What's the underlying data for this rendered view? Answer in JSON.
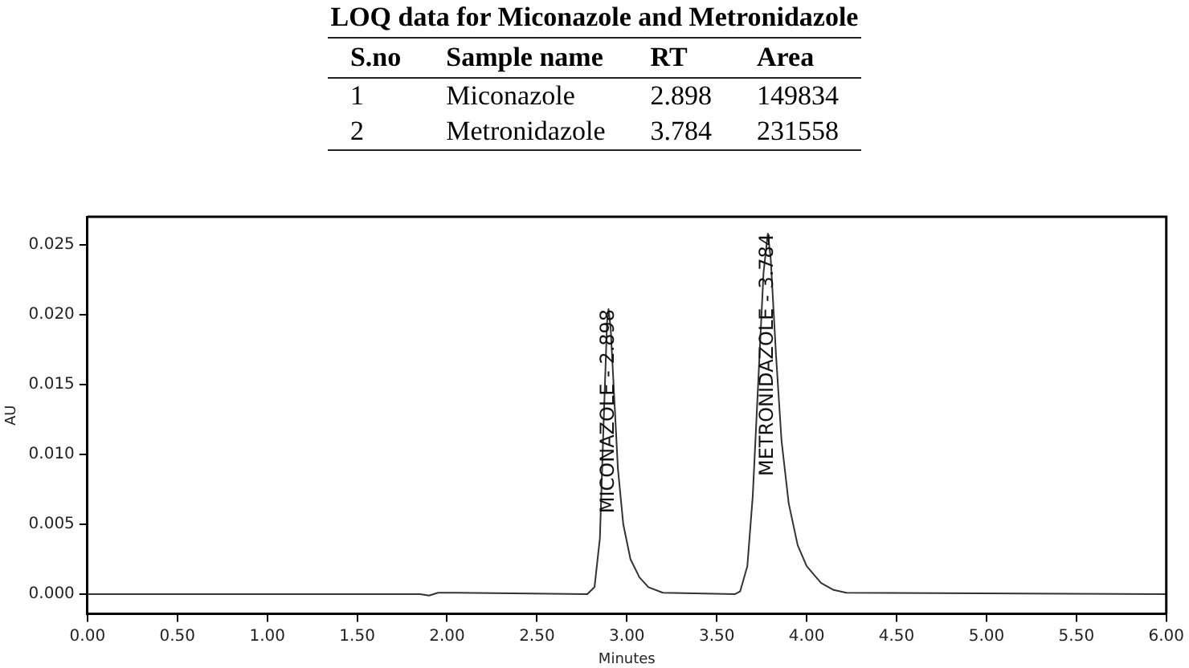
{
  "chart_data": [
    {
      "type": "other",
      "title": "LOQ data for Miconazole and Metronidazole",
      "categories": [
        "S.no",
        "Sample name",
        "RT",
        "Area"
      ],
      "annotations": [
        "1",
        "Miconazole",
        "2.898",
        "149834",
        "2",
        "Metronidazole",
        "3.784",
        "231558"
      ]
    },
    {
      "type": "line",
      "xlabel": "Minutes",
      "ylabel": "AU",
      "grid": false,
      "legend": false,
      "marker": "none",
      "line_style": "solid",
      "xlim": [
        0,
        6
      ],
      "ylim": [
        -0.0014,
        0.027
      ],
      "xticks": [
        {
          "value": 0,
          "label": "0.00"
        },
        {
          "value": 0.5,
          "label": "0.50"
        },
        {
          "value": 1,
          "label": "1.00"
        },
        {
          "value": 1.5,
          "label": "1.50"
        },
        {
          "value": 2,
          "label": "2.00"
        },
        {
          "value": 2.5,
          "label": "2.50"
        },
        {
          "value": 3,
          "label": "3.00"
        },
        {
          "value": 3.5,
          "label": "3.50"
        },
        {
          "value": 4,
          "label": "4.00"
        },
        {
          "value": 4.5,
          "label": "4.50"
        },
        {
          "value": 5,
          "label": "5.00"
        },
        {
          "value": 5.5,
          "label": "5.50"
        },
        {
          "value": 6,
          "label": "6.00"
        }
      ],
      "yticks": [
        {
          "value": 0,
          "label": "0.000"
        },
        {
          "value": 0.005,
          "label": "0.005"
        },
        {
          "value": 0.01,
          "label": "0.010"
        },
        {
          "value": 0.015,
          "label": "0.015"
        },
        {
          "value": 0.02,
          "label": "0.020"
        },
        {
          "value": 0.025,
          "label": "0.025"
        }
      ],
      "series": [
        {
          "color": "#333333",
          "x": [
            0,
            1.85,
            1.9,
            1.95,
            2.05,
            2.78,
            2.82,
            2.85,
            2.87,
            2.89,
            2.898,
            2.91,
            2.93,
            2.95,
            2.98,
            3.02,
            3.07,
            3.12,
            3.2,
            3.6,
            3.63,
            3.67,
            3.7,
            3.73,
            3.76,
            3.784,
            3.8,
            3.83,
            3.86,
            3.9,
            3.95,
            4,
            4.08,
            4.15,
            4.22,
            6
          ],
          "values": [
            0,
            0,
            -0.0001,
            0.0001,
            0.0001,
            0,
            0.0005,
            0.004,
            0.012,
            0.0195,
            0.0204,
            0.019,
            0.014,
            0.009,
            0.005,
            0.0025,
            0.0012,
            0.0005,
            0.0001,
            0,
            0.0002,
            0.002,
            0.007,
            0.015,
            0.023,
            0.0258,
            0.024,
            0.017,
            0.011,
            0.0065,
            0.0035,
            0.002,
            0.0008,
            0.0003,
            0.0001,
            0
          ]
        }
      ],
      "annotations": [
        {
          "text": "MICONAZOLE - 2.898",
          "x": 2.898,
          "y": 0.0204
        },
        {
          "text": "METRONIDAZOLE - 3.784",
          "x": 3.784,
          "y": 0.0258
        }
      ]
    }
  ]
}
